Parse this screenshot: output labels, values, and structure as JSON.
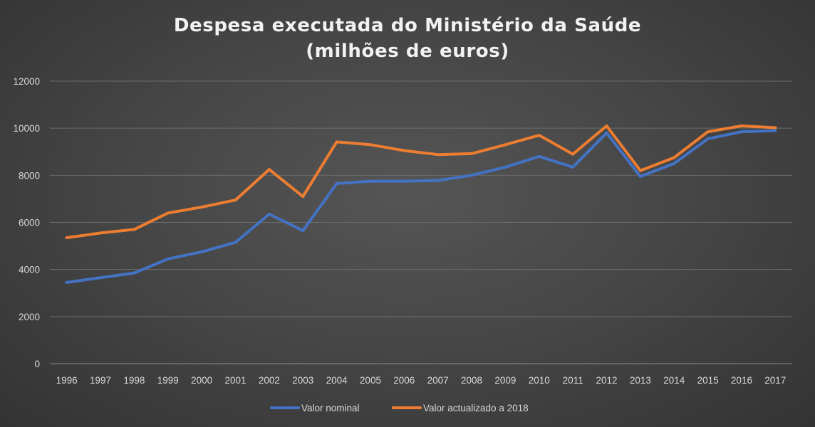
{
  "chart_data": {
    "type": "line",
    "title_line1": "Despesa executada do Ministério da Saúde",
    "title_line2": "(milhões de euros)",
    "xlabel": "",
    "ylabel": "",
    "categories": [
      "1996",
      "1997",
      "1998",
      "1999",
      "2000",
      "2001",
      "2002",
      "2003",
      "2004",
      "2005",
      "2006",
      "2007",
      "2008",
      "2009",
      "2010",
      "2011",
      "2012",
      "2013",
      "2014",
      "2015",
      "2016",
      "2017"
    ],
    "ylim": [
      0,
      12000
    ],
    "yticks": [
      0,
      2000,
      4000,
      6000,
      8000,
      10000,
      12000
    ],
    "grid": true,
    "legend_position": "bottom",
    "series": [
      {
        "name": "Valor nominal",
        "color": "#4472c4",
        "values": [
          3450,
          3650,
          3850,
          4450,
          4750,
          5150,
          6350,
          5650,
          7650,
          7750,
          7750,
          7780,
          8000,
          8350,
          8800,
          8350,
          9800,
          7950,
          8500,
          9550,
          9850,
          9900
        ]
      },
      {
        "name": "Valor actualizado a 2018",
        "color": "#ed7d31",
        "values": [
          5350,
          5550,
          5700,
          6400,
          6650,
          6950,
          8250,
          7100,
          9420,
          9300,
          9050,
          8880,
          8920,
          9300,
          9700,
          8900,
          10100,
          8200,
          8750,
          9850,
          10100,
          10020
        ]
      }
    ]
  }
}
